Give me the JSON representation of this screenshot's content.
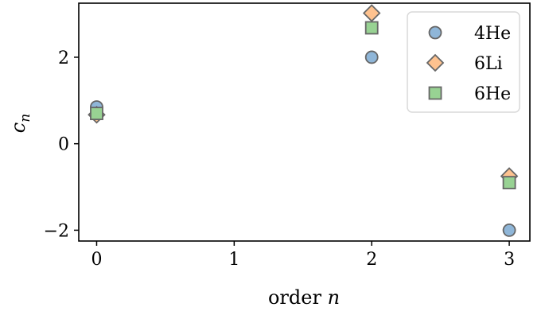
{
  "chart_data": {
    "type": "scatter",
    "xlabel": "order n",
    "ylabel": "c_n",
    "xlim": [
      -0.13,
      3.15
    ],
    "ylim": [
      -2.25,
      3.25
    ],
    "x_ticks": [
      0,
      1,
      2,
      3
    ],
    "y_ticks": [
      -2,
      0,
      2
    ],
    "x_tick_labels": [
      "0",
      "1",
      "2",
      "3"
    ],
    "y_tick_labels": [
      "−2",
      "0",
      "2"
    ],
    "grid": false,
    "legend_position": "top-right",
    "series": [
      {
        "name": "4He",
        "marker": "circle",
        "color": "#8fb6d8",
        "x": [
          0,
          2,
          3
        ],
        "y": [
          0.85,
          2.0,
          -2.0
        ]
      },
      {
        "name": "6Li",
        "marker": "diamond",
        "color": "#fec28f",
        "x": [
          0,
          2,
          3
        ],
        "y": [
          0.67,
          3.02,
          -0.75
        ]
      },
      {
        "name": "6He",
        "marker": "square",
        "color": "#98d293",
        "x": [
          0,
          2,
          3
        ],
        "y": [
          0.7,
          2.68,
          -0.9
        ]
      }
    ]
  }
}
